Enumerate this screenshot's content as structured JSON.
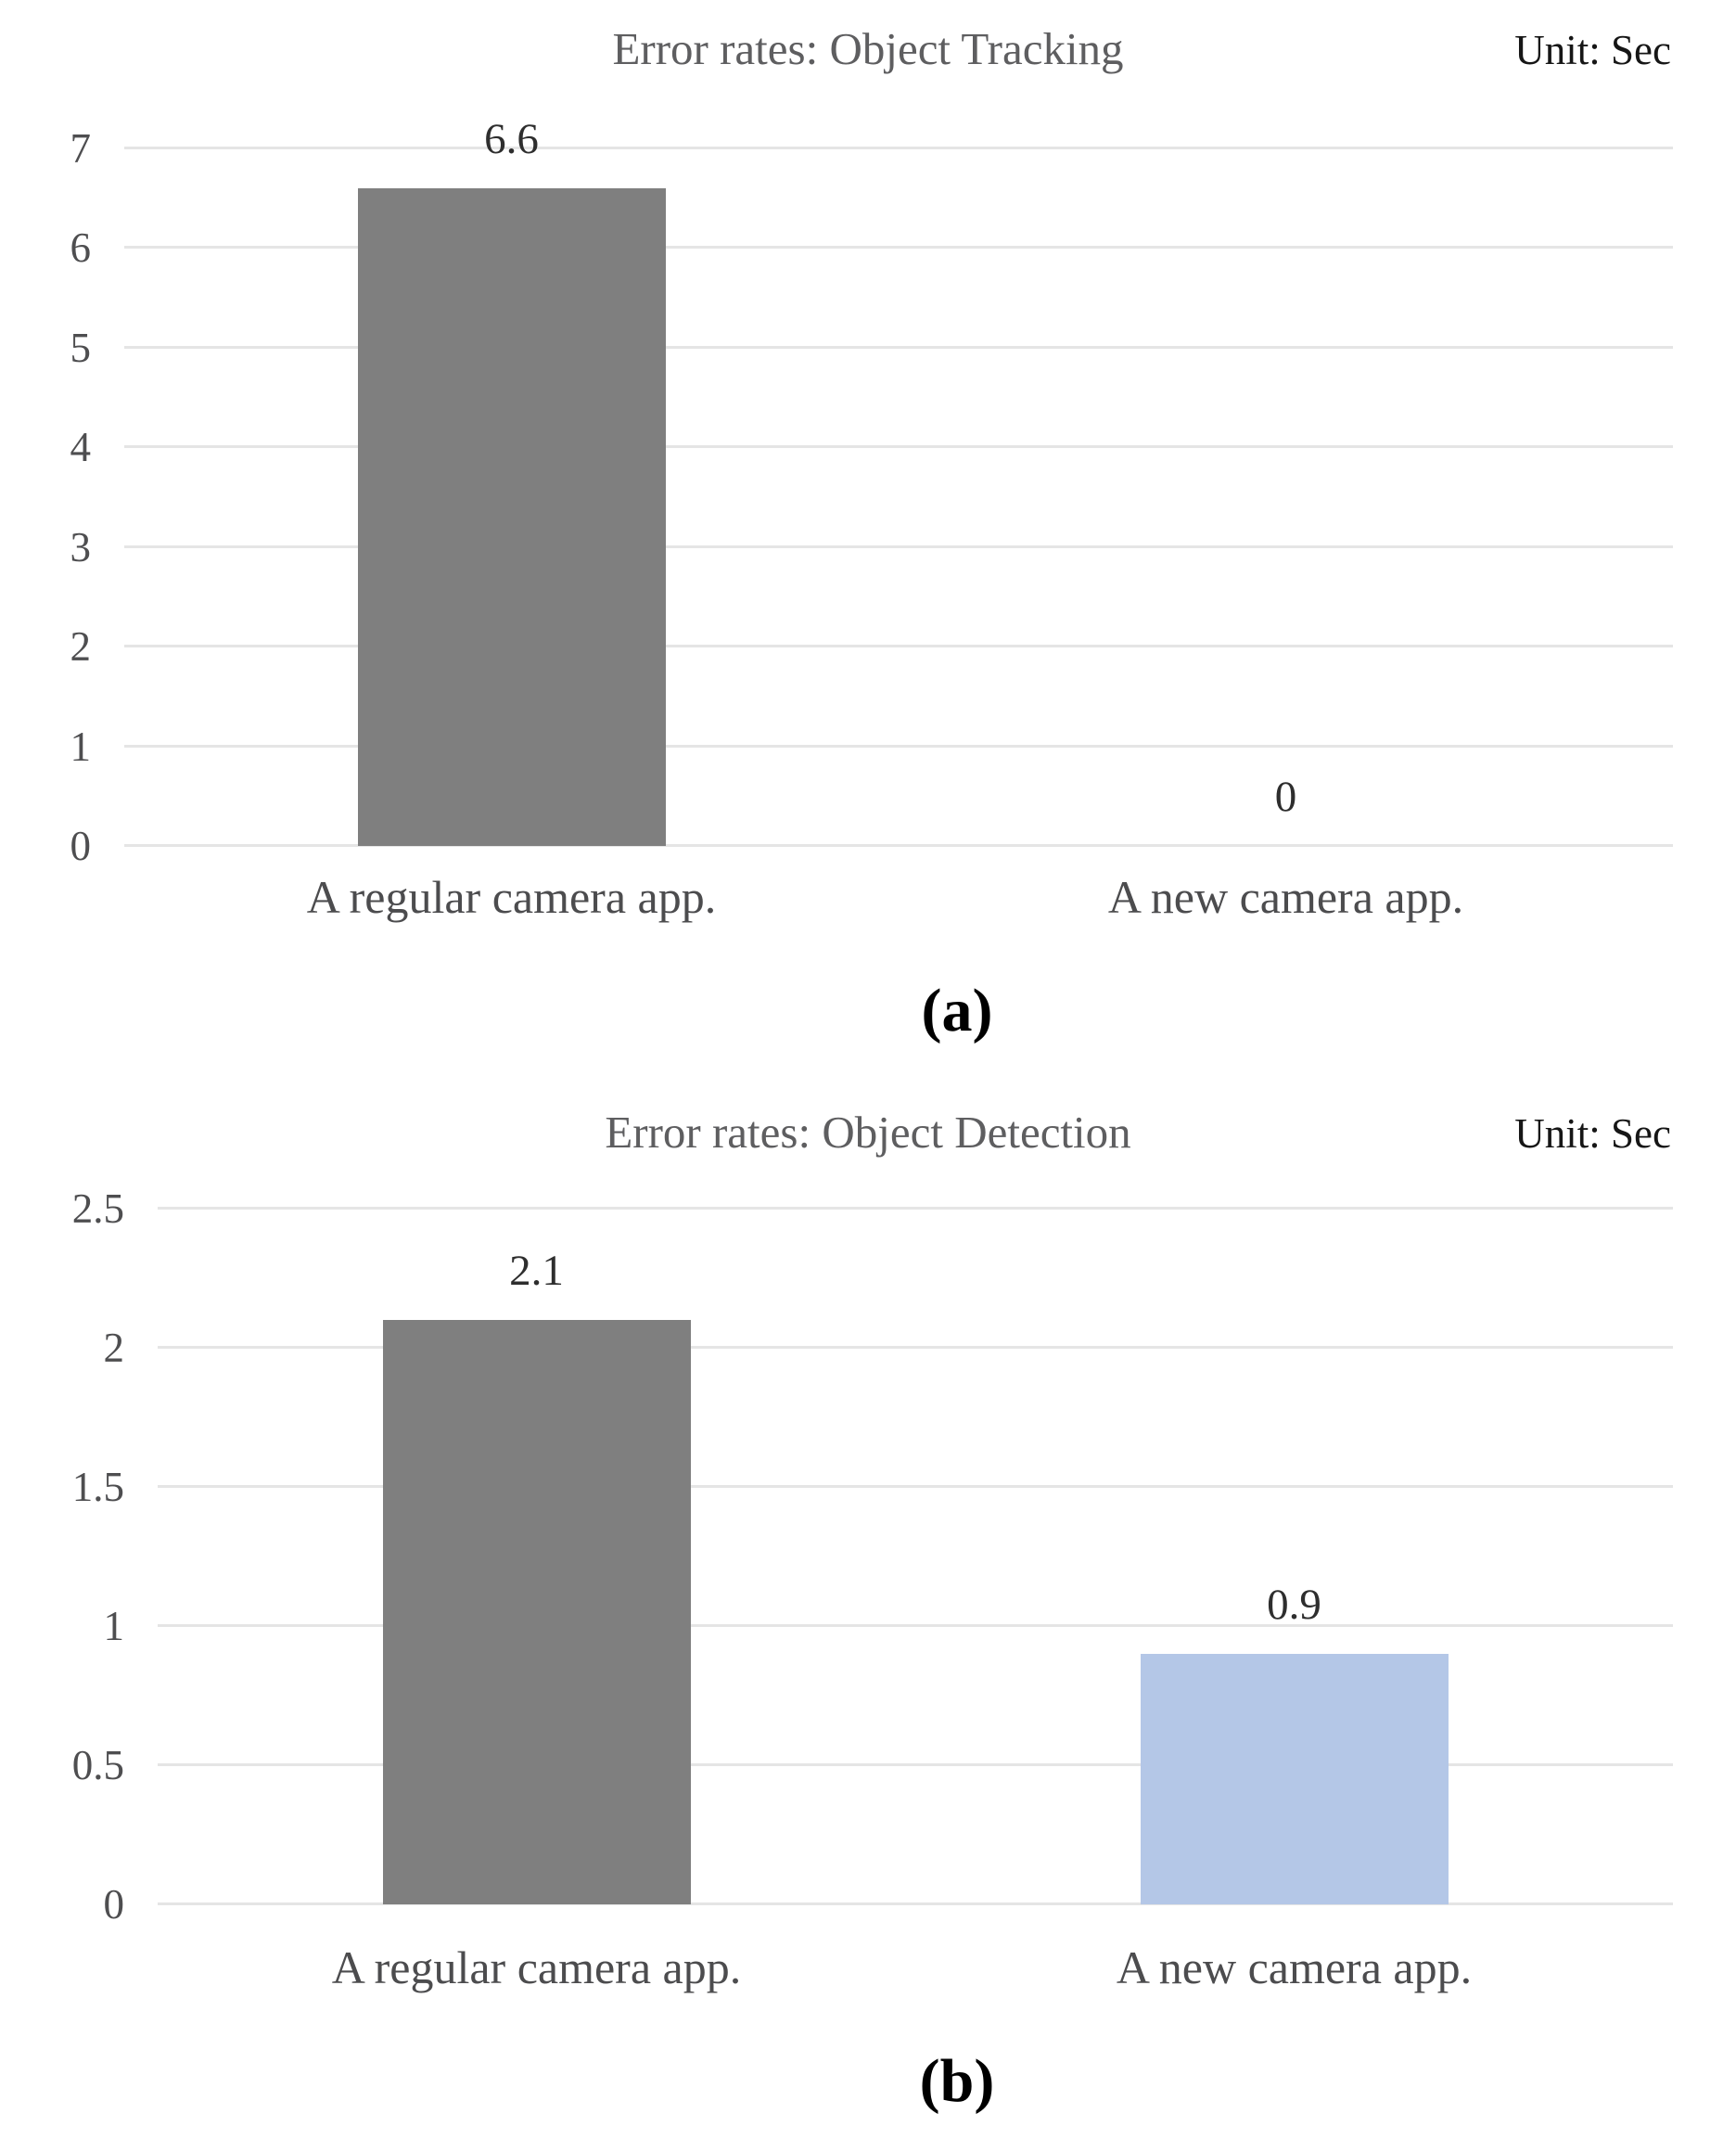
{
  "chart_data": [
    {
      "type": "bar",
      "title": "Error rates: Object Tracking",
      "unit_label": "Unit: Sec",
      "subfigure_caption": "(a)",
      "categories": [
        "A regular camera app.",
        "A new camera app."
      ],
      "values": [
        6.6,
        0
      ],
      "data_labels": [
        "6.6",
        "0"
      ],
      "ylim": [
        0,
        7
      ],
      "yticks": [
        7,
        6,
        5,
        4,
        3,
        2,
        1,
        0
      ],
      "ytick_labels": [
        "7",
        "6",
        "5",
        "4",
        "3",
        "2",
        "1",
        "0"
      ],
      "bar_colors": [
        "#7f7f7f",
        "#7f7f7f"
      ],
      "grid": true,
      "legend": "none",
      "xlabel": "",
      "ylabel": ""
    },
    {
      "type": "bar",
      "title": "Error rates: Object Detection",
      "unit_label": "Unit: Sec",
      "subfigure_caption": "(b)",
      "categories": [
        "A regular camera app.",
        "A new camera app."
      ],
      "values": [
        2.1,
        0.9
      ],
      "data_labels": [
        "2.1",
        "0.9"
      ],
      "ylim": [
        0,
        2.5
      ],
      "yticks": [
        2.5,
        2,
        1.5,
        1,
        0.5,
        0
      ],
      "ytick_labels": [
        "2.5",
        "2",
        "1.5",
        "1",
        "0.5",
        "0"
      ],
      "bar_colors": [
        "#7f7f7f",
        "#b4c7e7"
      ],
      "grid": true,
      "legend": "none",
      "xlabel": "",
      "ylabel": ""
    }
  ],
  "colors": {
    "bar_gray": "#7f7f7f",
    "bar_blue": "#b4c7e7",
    "gridline": "#e5e5e5",
    "title_text": "#5e5e60",
    "unit_text": "#161616",
    "tick_text": "#4e4e50",
    "category_text": "#4c4c4e",
    "data_label_text": "#2e2e2e",
    "caption_text": "#000000"
  }
}
